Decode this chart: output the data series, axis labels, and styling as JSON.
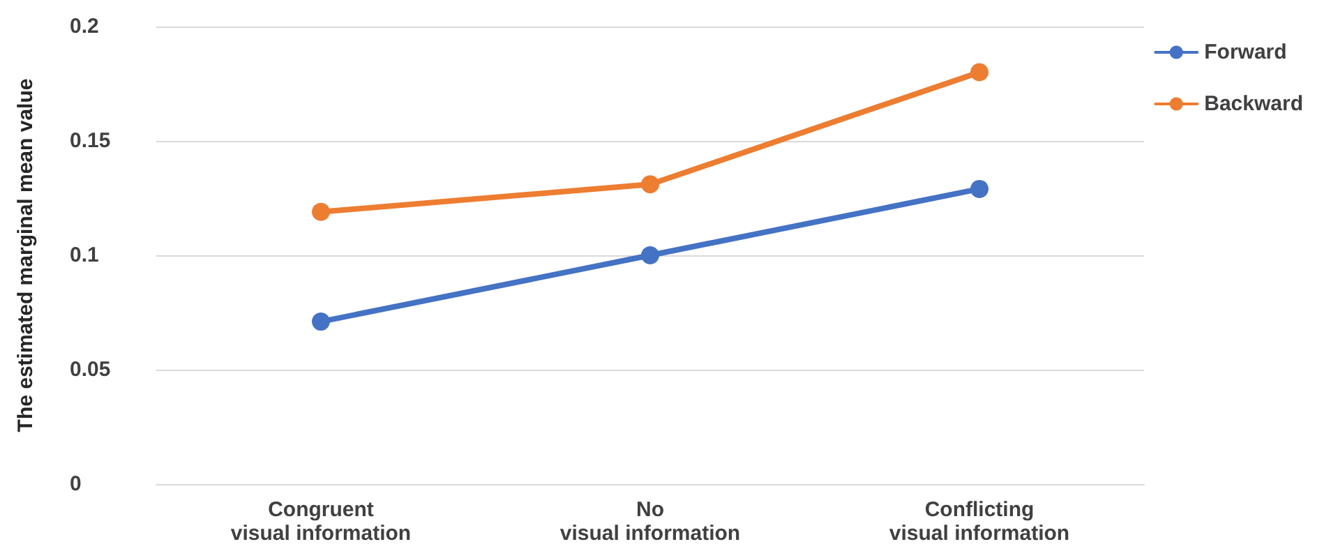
{
  "chart_data": {
    "type": "line",
    "ylabel": "The estimated marginal mean value",
    "categories": [
      "Congruent\nvisual information",
      "No\nvisual information",
      "Conflicting\nvisual information"
    ],
    "series": [
      {
        "name": "Forward",
        "color": "#4472c4",
        "values": [
          0.071,
          0.1,
          0.129
        ]
      },
      {
        "name": "Backward",
        "color": "#ed7d31",
        "values": [
          0.119,
          0.131,
          0.18
        ]
      }
    ],
    "ylim": [
      0,
      0.2
    ],
    "yticks": [
      0,
      0.05,
      0.1,
      0.15,
      0.2
    ],
    "grid": "y",
    "legend": "top right",
    "marker": "circle",
    "line_style": "solid"
  }
}
